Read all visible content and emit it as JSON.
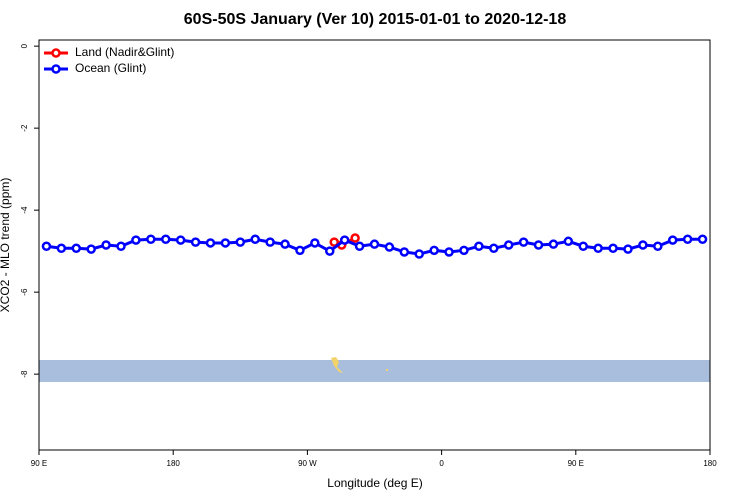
{
  "chart_data": {
    "type": "line",
    "title": "60S-50S January (Ver 10)   2015-01-01 to 2020-12-18",
    "x_label": "Longitude (deg E)",
    "y_label": "XCO2 - MLO trend (ppm)",
    "xlim": [
      90,
      540
    ],
    "ylim": [
      -9.85,
      0.15
    ],
    "xticks": [
      {
        "value": 90,
        "label": "90 E"
      },
      180,
      {
        "value": 270,
        "label": "90 W"
      },
      {
        "value": 360,
        "label": "0"
      },
      {
        "value": 450,
        "label": "90 E"
      },
      {
        "value": 540,
        "label": "180"
      }
    ],
    "yticks": [
      0,
      -2,
      -4,
      -6,
      -8
    ],
    "legend": "top-left",
    "series": [
      {
        "name": "Land (Nadir&Glint)",
        "color": "#ff0000",
        "x": [
          288,
          293,
          302
        ],
        "values": [
          -4.78,
          -4.85,
          -4.68
        ]
      },
      {
        "name": "Ocean (Glint)",
        "color": "#0000ff",
        "x": [
          95,
          105,
          115,
          125,
          135,
          145,
          155,
          165,
          175,
          185,
          195,
          205,
          215,
          225,
          235,
          245,
          255,
          265,
          275,
          285,
          295,
          305,
          315,
          325,
          335,
          345,
          355,
          365,
          375,
          385,
          395,
          405,
          415,
          425,
          435,
          445,
          455,
          465,
          475,
          485,
          495,
          505,
          515,
          525,
          535
        ],
        "values": [
          -4.88,
          -4.93,
          -4.93,
          -4.95,
          -4.85,
          -4.88,
          -4.73,
          -4.71,
          -4.71,
          -4.73,
          -4.78,
          -4.8,
          -4.8,
          -4.78,
          -4.71,
          -4.78,
          -4.83,
          -4.98,
          -4.8,
          -5.0,
          -4.73,
          -4.88,
          -4.83,
          -4.9,
          -5.02,
          -5.07,
          -4.98,
          -5.02,
          -4.98,
          -4.88,
          -4.93,
          -4.85,
          -4.78,
          -4.85,
          -4.83,
          -4.76,
          -4.88,
          -4.93,
          -4.93,
          -4.95,
          -4.85,
          -4.88,
          -4.73,
          -4.71,
          -4.71
        ]
      }
    ]
  }
}
